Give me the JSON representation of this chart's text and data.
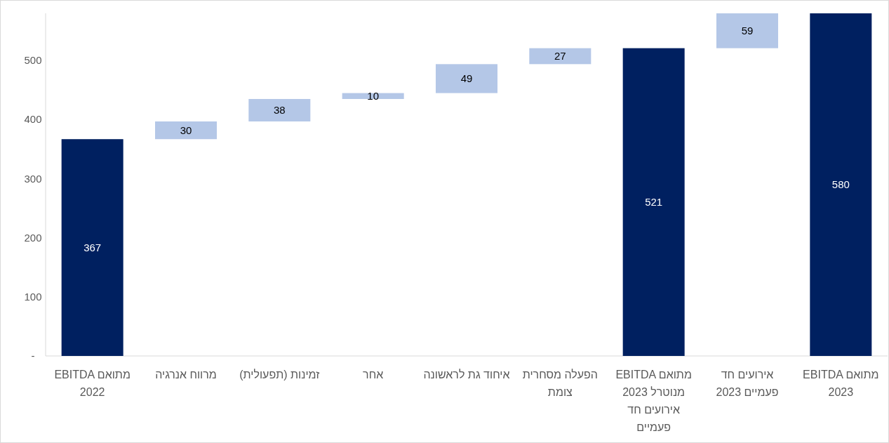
{
  "chart_data": {
    "type": "bar",
    "categories": [
      "EBITDA מתואם 2022",
      "מרווח אנרגיה",
      "זמינות (תפעולית)",
      "אחר",
      "איחוד גת לראשונה",
      "הפעלה מסחרית צומת",
      "EBITDA מתואם 2023 מנוטרל אירועים חד פעמיים",
      "אירועים חד פעמיים 2023",
      "EBITDA מתואם 2023"
    ],
    "values": [
      367,
      30,
      38,
      10,
      49,
      27,
      521,
      59,
      580
    ],
    "base": [
      0,
      367,
      397,
      435,
      445,
      494,
      0,
      521,
      0
    ],
    "colors": [
      "#002060",
      "#b4c7e7",
      "#b4c7e7",
      "#b4c7e7",
      "#b4c7e7",
      "#b4c7e7",
      "#002060",
      "#b4c7e7",
      "#002060"
    ],
    "ylim": [
      0,
      580
    ],
    "yticks": [
      {
        "value": 0,
        "label": "-"
      },
      100,
      200,
      300,
      400,
      500
    ],
    "data_labels": true
  }
}
